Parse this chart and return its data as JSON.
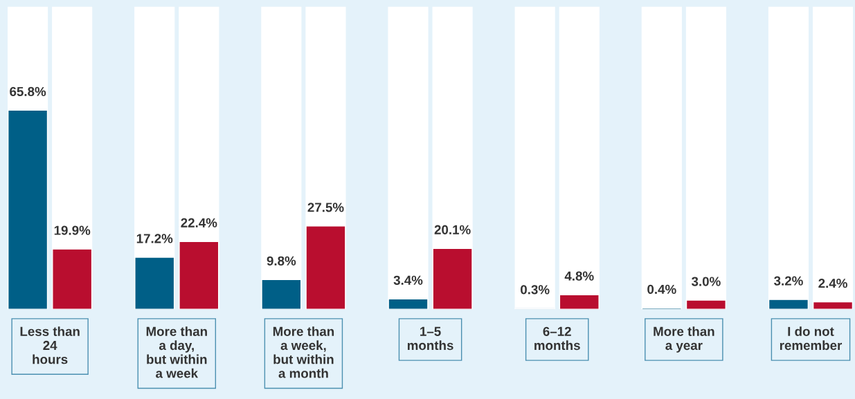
{
  "chart_data": {
    "type": "bar",
    "categories": [
      "Less than\n24\nhours",
      "More than\na day,\nbut within\na week",
      "More than\na week,\nbut within\na month",
      "1–5\nmonths",
      "6–12\nmonths",
      "More than\na year",
      "I do not\nremember"
    ],
    "series": [
      {
        "color": "#005f87",
        "values": [
          65.8,
          17.2,
          9.8,
          3.4,
          0.3,
          0.4,
          3.2
        ],
        "value_labels": [
          "65.8%",
          "17.2%",
          "9.8%",
          "3.4%",
          "0.3%",
          "0.4%",
          "3.2%"
        ]
      },
      {
        "color": "#b90e2f",
        "values": [
          19.9,
          22.4,
          27.5,
          20.1,
          4.8,
          3.0,
          2.4
        ],
        "value_labels": [
          "19.9%",
          "22.4%",
          "27.5%",
          "20.1%",
          "4.8%",
          "3.0%",
          "2.4%"
        ]
      }
    ],
    "ylim": [
      0,
      100
    ],
    "tick_labels": "x",
    "grid": false
  }
}
